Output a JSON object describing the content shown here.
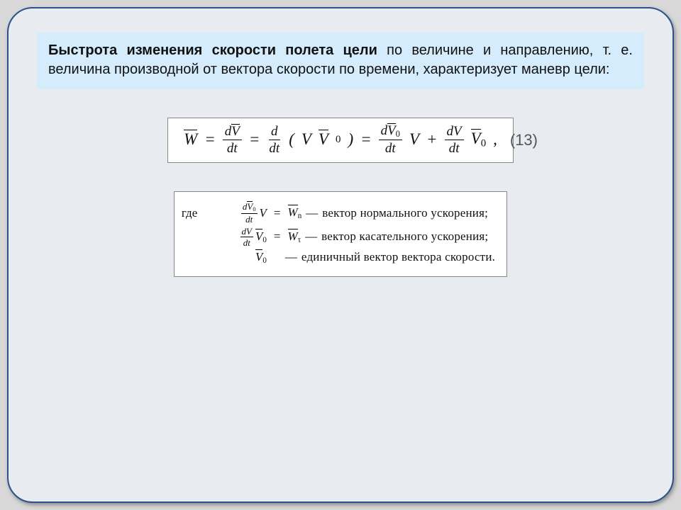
{
  "colors": {
    "page_bg": "#d8d8d8",
    "slide_bg": "#e8ecf1",
    "slide_border": "#2f4f8f",
    "box_bg": "#d4ecfb",
    "equation_bg": "#ffffff",
    "equation_border": "#888888",
    "text": "#111111",
    "eqnum": "#555555"
  },
  "layout": {
    "slide_w": 940,
    "slide_h": 700,
    "slide_radius": 36,
    "title_fontsize": 20,
    "eq_fontsize": 23,
    "defs_fontsize": 17
  },
  "title": {
    "bold": "Быстрота изменения скорости полета цели",
    "rest": " по величине и направлению, т. е. величина производной от вектора скорости по времени, характеризует маневр цели:"
  },
  "equation": {
    "number": "(13)",
    "W": "W",
    "eq": "=",
    "f1_num": "dV̄",
    "f1_num_plain_d": "d",
    "f1_num_sym": "V",
    "f1_den": "dt",
    "f2_num": "d",
    "f2_den": "dt",
    "paren_open": "(",
    "VV0_a": "V",
    "VV0_b": "V",
    "VV0_sub": "0",
    "paren_close": ")",
    "f3_num_d": "d",
    "f3_num_sym": "V",
    "f3_num_sub": "0",
    "f3_den": "dt",
    "mult_V": "V",
    "plus": "+",
    "f4_num": "dV",
    "f4_den": "dt",
    "tail_sym": "V",
    "tail_sub": "0",
    "comma": ","
  },
  "definitions": {
    "lead": "где",
    "rows": [
      {
        "frac_num_d": "d",
        "frac_num_sym": "V",
        "frac_num_sub": "0",
        "frac_den": "dt",
        "mult": "V",
        "rhs_sym": "W",
        "rhs_sub": "n",
        "dash": "—",
        "desc": "вектор нормального ускорения;"
      },
      {
        "frac_num": "dV",
        "frac_den": "dt",
        "mult_sym": "V",
        "mult_sub": "0",
        "rhs_sym": "W",
        "rhs_sub": "τ",
        "dash": "—",
        "desc": "вектор касательного ускорения;"
      },
      {
        "single_sym": "V",
        "single_sub": "0",
        "dash": "—",
        "desc": "единичный вектор вектора скорости."
      }
    ]
  }
}
